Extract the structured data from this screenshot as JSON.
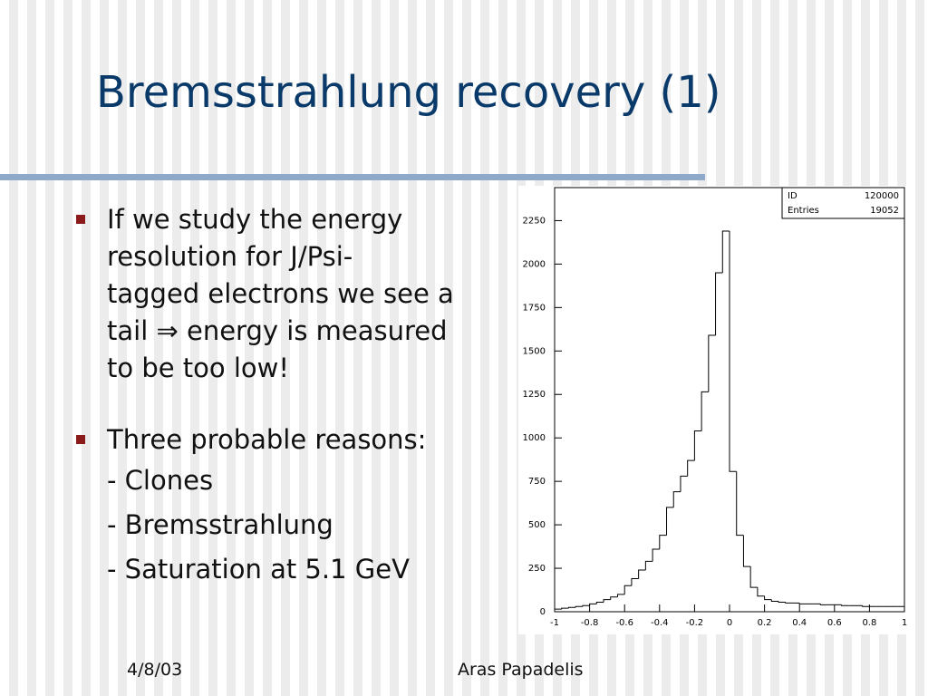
{
  "title": "Bremsstrahlung recovery (1)",
  "bullets": [
    {
      "lines": [
        "If we study the energy",
        "resolution for J/Psi-",
        "tagged electrons we see a",
        "tail ⇒ energy is measured",
        "to be too low!"
      ]
    },
    {
      "lines": [
        "Three probable reasons:"
      ],
      "sub": [
        "- Clones",
        "- Bremsstrahlung",
        "- Saturation at 5.1 GeV"
      ]
    }
  ],
  "footer": {
    "date": "4/8/03",
    "author": "Aras Papadelis"
  },
  "chart_data": {
    "type": "histogram",
    "stats": [
      [
        "ID",
        "120000"
      ],
      [
        "Entries",
        "19052"
      ]
    ],
    "bins": [
      -1,
      -0.96,
      -0.92,
      -0.88,
      -0.84,
      -0.8,
      -0.76,
      -0.72,
      -0.68,
      -0.64,
      -0.6,
      -0.56,
      -0.52,
      -0.48,
      -0.44,
      -0.4,
      -0.36,
      -0.32,
      -0.28,
      -0.24,
      -0.2,
      -0.16,
      -0.12,
      -0.08,
      -0.04,
      0,
      0.04,
      0.08,
      0.12,
      0.16,
      0.2,
      0.24,
      0.28,
      0.32,
      0.36,
      0.4,
      0.44,
      0.48,
      0.52,
      0.56,
      0.6,
      0.64,
      0.68,
      0.72,
      0.76,
      0.8,
      0.84,
      0.88,
      0.92,
      0.96,
      1
    ],
    "counts": [
      15,
      20,
      25,
      30,
      35,
      45,
      55,
      70,
      85,
      100,
      150,
      190,
      240,
      290,
      360,
      440,
      600,
      690,
      780,
      870,
      1040,
      1265,
      1590,
      1950,
      2190,
      807,
      440,
      260,
      140,
      90,
      70,
      60,
      55,
      50,
      50,
      45,
      45,
      45,
      40,
      40,
      40,
      35,
      35,
      35,
      30,
      30,
      30,
      30,
      30,
      30
    ],
    "color": "#000000",
    "xlim": [
      -1,
      1
    ],
    "xticks": [
      -1,
      -0.8,
      -0.6,
      -0.4,
      -0.2,
      0,
      0.2,
      0.4,
      0.6,
      0.8,
      1
    ],
    "ylim": [
      0,
      2440
    ],
    "yticks": [
      0,
      250,
      500,
      750,
      1000,
      1250,
      1500,
      1750,
      2000,
      2250
    ]
  }
}
